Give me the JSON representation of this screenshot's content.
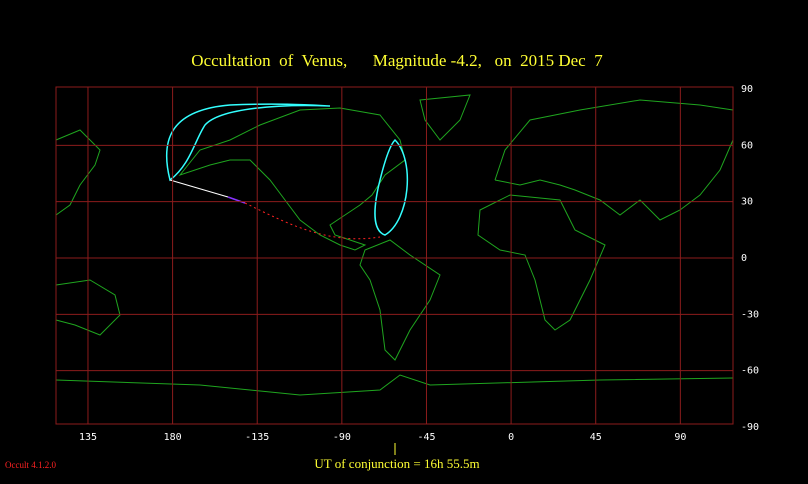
{
  "chart_data": {
    "type": "map",
    "title": "Occultation  of  Venus,      Magnitude -4.2,   on  2015 Dec  7",
    "xlim": [
      -242,
      118
    ],
    "ylim": [
      -90,
      90
    ],
    "xticks": [
      {
        "value": -225,
        "label": "135"
      },
      {
        "value": -180,
        "label": "180"
      },
      -135,
      -90,
      -45,
      0,
      45,
      90
    ],
    "yticks": [
      90,
      60,
      30,
      0,
      -30,
      -60,
      -90
    ],
    "grid": true,
    "grid_color": "#8c1c1c",
    "caption": "UT of conjunction = 16h 55.5m",
    "software": "Occult 4.1.2.0"
  }
}
